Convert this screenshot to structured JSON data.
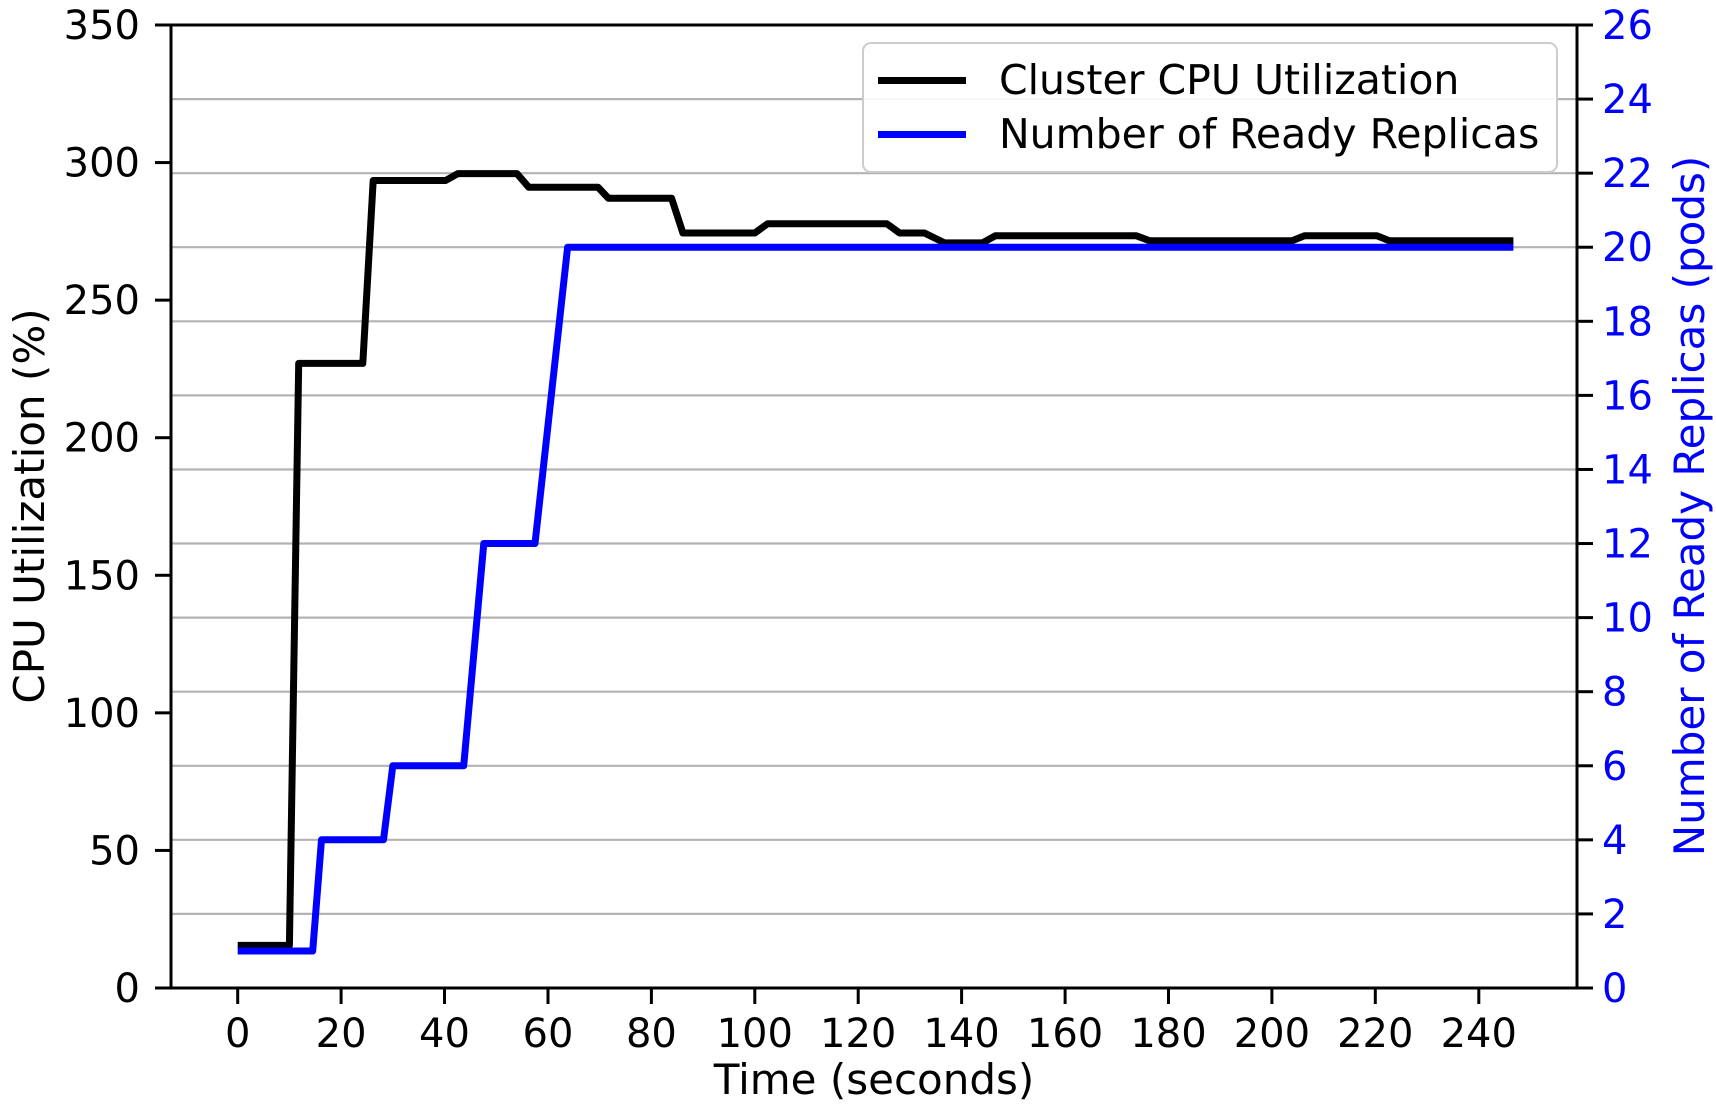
{
  "chart_data": {
    "type": "line",
    "title": "",
    "xlabel": "Time (seconds)",
    "ylabel_left": "CPU Utilization (%)",
    "ylabel_right": "Number of Ready Replicas (pods)",
    "xlim": [
      -12.9,
      259.0
    ],
    "ylim_left": [
      0,
      350
    ],
    "ylim_right": [
      0,
      26
    ],
    "xticks": [
      0,
      20,
      40,
      60,
      80,
      100,
      120,
      140,
      160,
      180,
      200,
      220,
      240
    ],
    "yticks_left": [
      0,
      50,
      100,
      150,
      200,
      250,
      300,
      350
    ],
    "yticks_right": [
      0,
      2,
      4,
      6,
      8,
      10,
      12,
      14,
      16,
      18,
      20,
      22,
      24,
      26
    ],
    "grid": {
      "horizontal": true,
      "follows": "right-axis-ticks",
      "on": true
    },
    "colors": {
      "cpu_line": "#000000",
      "replicas_line": "#0000ff",
      "right_axis_text": "#0000ff",
      "left_axis_text": "#000000",
      "gridline": "#b3b3b3",
      "legend_border": "#cccccc",
      "background": "#ffffff"
    },
    "legend": {
      "position": "upper right",
      "entries": [
        {
          "label": "Cluster CPU Utilization",
          "color": "#000000"
        },
        {
          "label": "Number of Ready Replicas",
          "color": "#0000ff"
        }
      ]
    },
    "series": [
      {
        "name": "Cluster CPU Utilization",
        "axis": "left",
        "color": "#000000",
        "points": [
          [
            0,
            15.5
          ],
          [
            10,
            15.5
          ],
          [
            11.8,
            227
          ],
          [
            24.2,
            227
          ],
          [
            26.2,
            293.5
          ],
          [
            40.2,
            293.5
          ],
          [
            42.6,
            296
          ],
          [
            54,
            296
          ],
          [
            56.3,
            291
          ],
          [
            69.7,
            291
          ],
          [
            71.7,
            287
          ],
          [
            83.9,
            287
          ],
          [
            86.1,
            274.4
          ],
          [
            100,
            274.4
          ],
          [
            102.5,
            277.8
          ],
          [
            125.5,
            277.8
          ],
          [
            128,
            274.4
          ],
          [
            132.8,
            274.4
          ],
          [
            136.7,
            270.8
          ],
          [
            144,
            270.8
          ],
          [
            146.5,
            273.4
          ],
          [
            173.8,
            273.4
          ],
          [
            176.3,
            271.6
          ],
          [
            203.9,
            271.6
          ],
          [
            206.3,
            273.4
          ],
          [
            220.3,
            273.4
          ],
          [
            222.7,
            271.6
          ],
          [
            246.7,
            271.6
          ]
        ]
      },
      {
        "name": "Number of Ready Replicas",
        "axis": "right",
        "color": "#0000ff",
        "points": [
          [
            0,
            1
          ],
          [
            14.5,
            1
          ],
          [
            16.2,
            4
          ],
          [
            28.2,
            4
          ],
          [
            30,
            6
          ],
          [
            43.7,
            6
          ],
          [
            47.6,
            12
          ],
          [
            57.5,
            12
          ],
          [
            63.8,
            20
          ],
          [
            246.7,
            20
          ]
        ]
      }
    ]
  }
}
